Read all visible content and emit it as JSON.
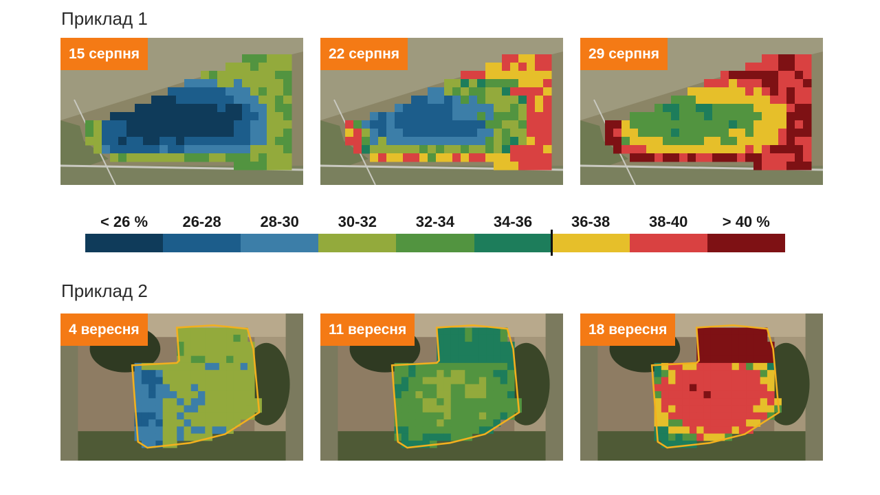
{
  "example1": {
    "title": "Приклад 1",
    "panels": [
      {
        "date": "15 серпня",
        "stage": 0
      },
      {
        "date": "22 серпня",
        "stage": 1
      },
      {
        "date": "29 серпня",
        "stage": 2
      }
    ]
  },
  "example2": {
    "title": "Приклад 2",
    "panels": [
      {
        "date": "4 вересня",
        "stage": 0
      },
      {
        "date": "11 вересня",
        "stage": 1
      },
      {
        "date": "18 вересня",
        "stage": 2
      }
    ]
  },
  "legend": {
    "items": [
      {
        "label": "< 26 %",
        "color": "#0f3b5a"
      },
      {
        "label": "26-28",
        "color": "#1c5d8b"
      },
      {
        "label": "28-30",
        "color": "#3c7ea8"
      },
      {
        "label": "30-32",
        "color": "#93aa3c"
      },
      {
        "label": "32-34",
        "color": "#529440"
      },
      {
        "label": "34-36",
        "color": "#1d7d5b"
      },
      {
        "label": "36-38",
        "color": "#e6bf2a"
      },
      {
        "label": "38-40",
        "color": "#d94141"
      },
      {
        "label": "> 40 %",
        "color": "#7e1114"
      }
    ]
  },
  "colors": {
    "badge": "#f47a15",
    "field_outline": "#f2b01e"
  }
}
